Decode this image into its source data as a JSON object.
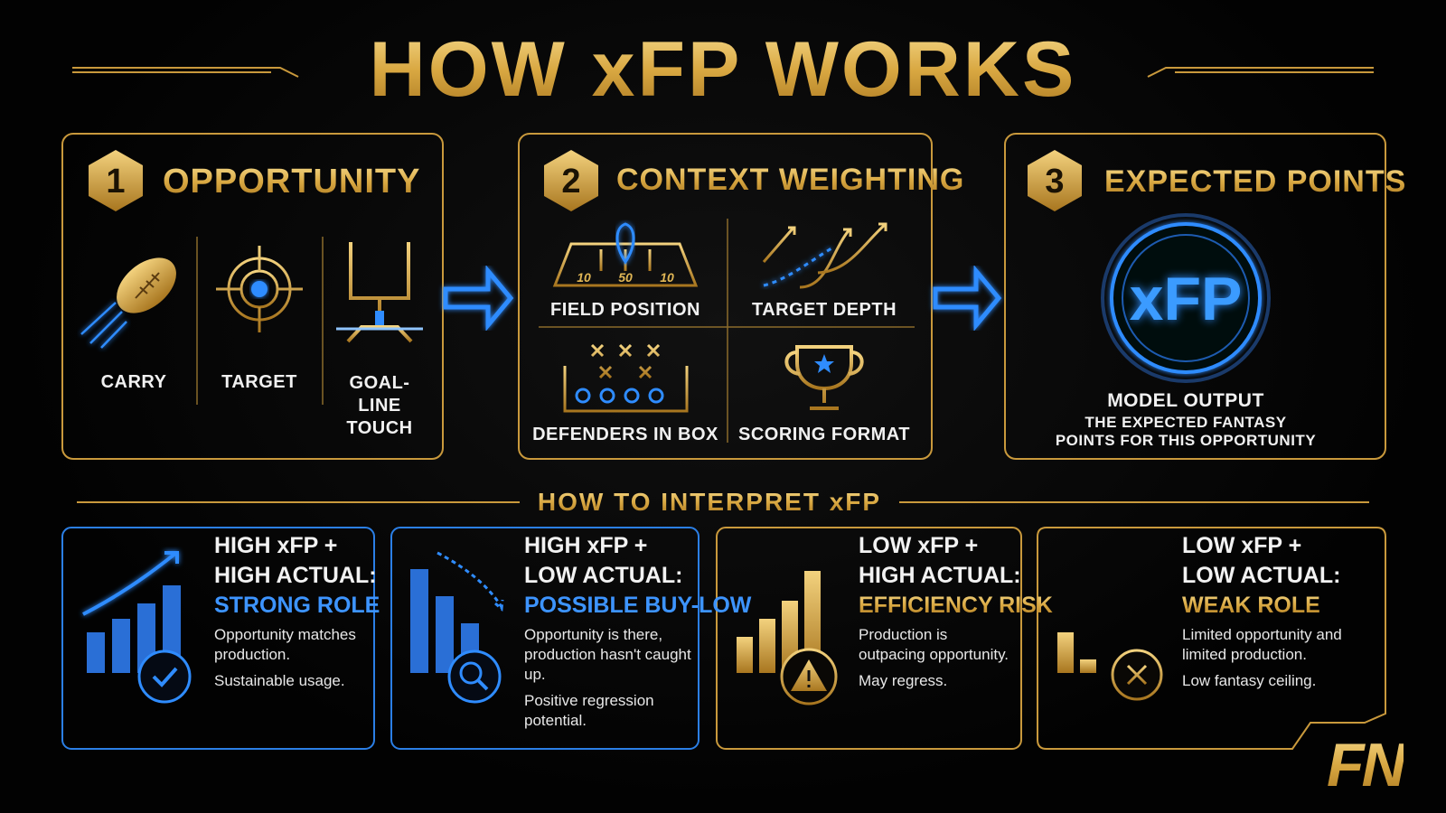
{
  "title": "HOW xFP WORKS",
  "steps": [
    {
      "number": "1",
      "title": "OPPORTUNITY",
      "items": [
        "CARRY",
        "TARGET",
        "GOAL-LINE TOUCH"
      ]
    },
    {
      "number": "2",
      "title": "CONTEXT WEIGHTING",
      "items": [
        "FIELD POSITION",
        "TARGET DEPTH",
        "DEFENDERS IN BOX",
        "SCORING FORMAT"
      ],
      "field_labels": [
        "10",
        "50",
        "10"
      ]
    },
    {
      "number": "3",
      "title": "EXPECTED POINTS",
      "badge": "xFP",
      "label": "MODEL OUTPUT",
      "description": "THE EXPECTED FANTASY POINTS FOR THIS OPPORTUNITY"
    }
  ],
  "interpret": {
    "title": "HOW TO INTERPRET xFP",
    "cards": [
      {
        "heading": [
          "HIGH xFP +",
          "HIGH ACTUAL:"
        ],
        "verdict": "STRONG ROLE",
        "lines": [
          "Opportunity matches production.",
          "Sustainable usage."
        ]
      },
      {
        "heading": [
          "HIGH xFP +",
          "LOW ACTUAL:"
        ],
        "verdict": "POSSIBLE BUY-LOW",
        "lines": [
          "Opportunity is there, production hasn't caught up.",
          "Positive regression potential."
        ]
      },
      {
        "heading": [
          "LOW xFP +",
          "HIGH ACTUAL:"
        ],
        "verdict": "EFFICIENCY RISK",
        "lines": [
          "Production is outpacing opportunity.",
          "May regress."
        ]
      },
      {
        "heading": [
          "LOW xFP +",
          "LOW ACTUAL:"
        ],
        "verdict": "WEAK ROLE",
        "lines": [
          "Limited opportunity and limited production.",
          "Low fantasy ceiling."
        ]
      }
    ]
  },
  "logo": "FN"
}
